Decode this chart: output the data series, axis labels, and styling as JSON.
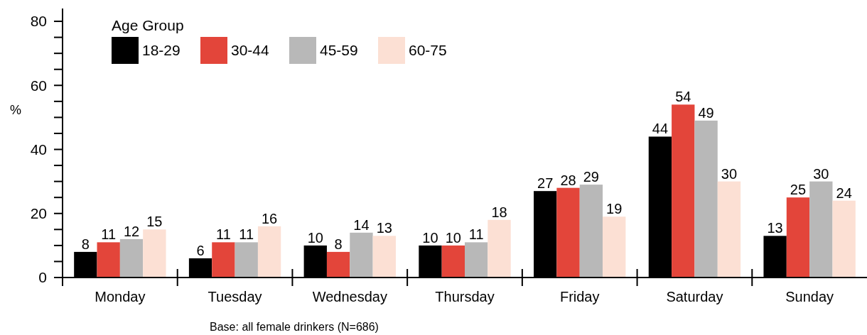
{
  "chart_data": {
    "type": "bar",
    "ylabel": "%",
    "legend_title": "Age Group",
    "legend": "top left",
    "data_labels": true,
    "grid": false,
    "categories": [
      "Monday",
      "Tuesday",
      "Wednesday",
      "Thursday",
      "Friday",
      "Saturday",
      "Sunday"
    ],
    "series": [
      {
        "name": "18-29",
        "color": "#000000",
        "values": [
          8,
          6,
          10,
          10,
          27,
          44,
          13
        ]
      },
      {
        "name": "30-44",
        "color": "#e3453a",
        "values": [
          11,
          11,
          8,
          10,
          28,
          54,
          25
        ]
      },
      {
        "name": "45-59",
        "color": "#b8b8b8",
        "values": [
          12,
          11,
          14,
          11,
          29,
          49,
          30
        ]
      },
      {
        "name": "60-75",
        "color": "#fce0d4",
        "values": [
          15,
          16,
          13,
          18,
          19,
          30,
          24
        ]
      }
    ],
    "ylim": [
      0,
      84
    ],
    "yticks": [
      0,
      {
        "value": 5,
        "label": null
      },
      {
        "value": 10,
        "label": null
      },
      {
        "value": 15,
        "label": null
      },
      20,
      {
        "value": 25,
        "label": null
      },
      {
        "value": 30,
        "label": null
      },
      {
        "value": 35,
        "label": null
      },
      40,
      {
        "value": 45,
        "label": null
      },
      {
        "value": 50,
        "label": null
      },
      {
        "value": 55,
        "label": null
      },
      60,
      {
        "value": 65,
        "label": null
      },
      {
        "value": 70,
        "label": null
      },
      {
        "value": 75,
        "label": null
      },
      80
    ],
    "annotations": [
      "Base: all female drinkers (N=686)"
    ]
  }
}
